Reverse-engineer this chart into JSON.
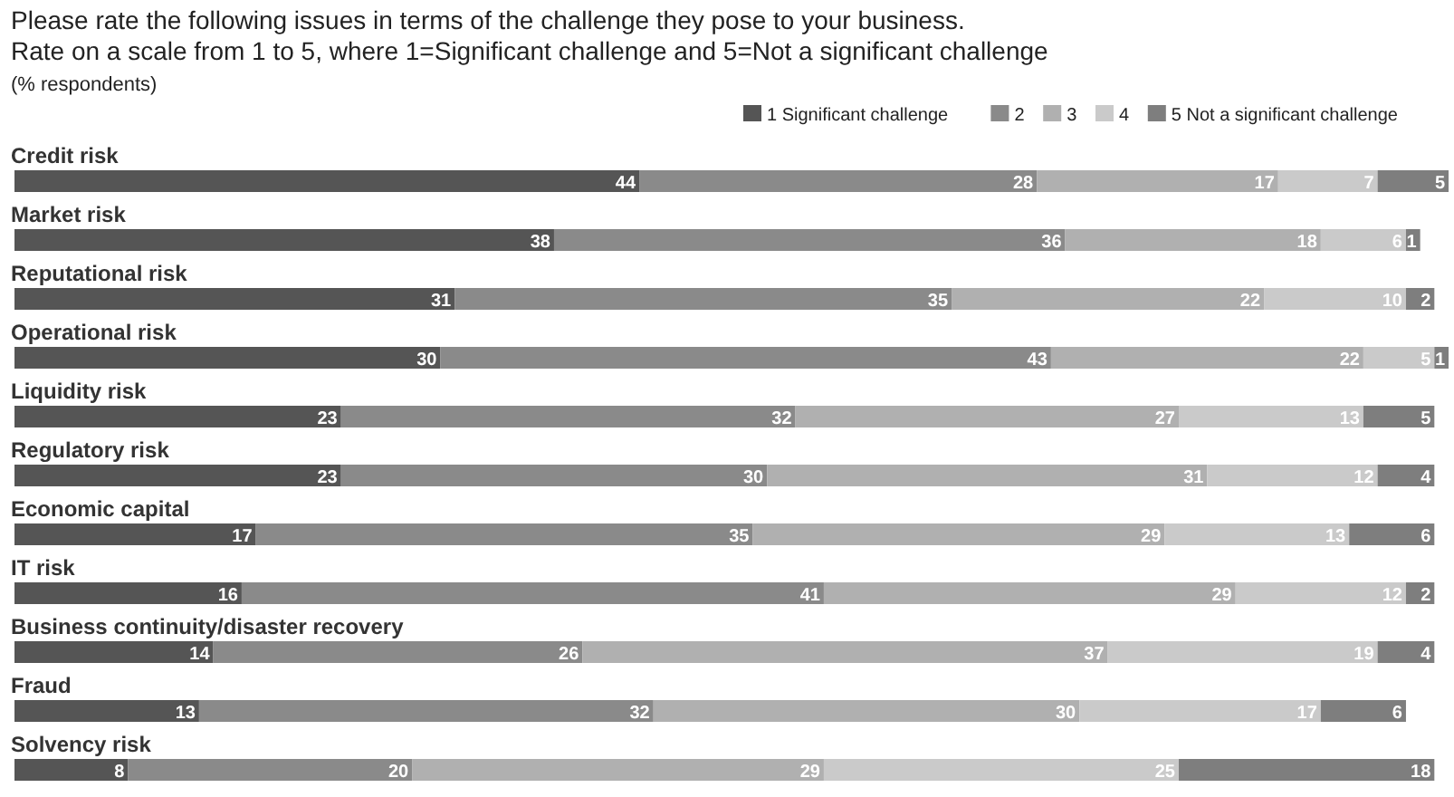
{
  "chart_data": {
    "type": "bar",
    "orientation": "horizontal",
    "stacked": true,
    "title": "Please rate the following issues in terms of the challenge they pose to your business.",
    "subtitle": "Rate on a scale from 1 to 5, where 1=Significant challenge and 5=Not a significant challenge",
    "annotations": [
      "(% respondents)"
    ],
    "categories": [
      "Credit risk",
      "Market risk",
      "Reputational risk",
      "Operational risk",
      "Liquidity risk",
      "Regulatory risk",
      "Economic capital",
      "IT risk",
      "Business continuity/disaster recovery",
      "Fraud",
      "Solvency risk"
    ],
    "series": [
      {
        "name": "1 Significant challenge",
        "color": "#555555",
        "values": [
          44,
          38,
          31,
          30,
          23,
          23,
          17,
          16,
          14,
          13,
          8
        ]
      },
      {
        "name": "2",
        "color": "#8a8a8a",
        "values": [
          28,
          36,
          35,
          43,
          32,
          30,
          35,
          41,
          26,
          32,
          20
        ]
      },
      {
        "name": "3",
        "color": "#b0b0b0",
        "values": [
          17,
          18,
          22,
          22,
          27,
          31,
          29,
          29,
          37,
          30,
          29
        ]
      },
      {
        "name": "4",
        "color": "#cacaca",
        "values": [
          7,
          6,
          10,
          5,
          13,
          12,
          13,
          12,
          19,
          17,
          25
        ]
      },
      {
        "name": "5 Not a significant challenge",
        "color": "#7e7e7e",
        "values": [
          5,
          1,
          2,
          1,
          5,
          4,
          6,
          2,
          4,
          6,
          18
        ]
      }
    ],
    "xlim": [
      0,
      101
    ],
    "data_labels": true,
    "legend": "top right",
    "tick_labels": "y"
  }
}
